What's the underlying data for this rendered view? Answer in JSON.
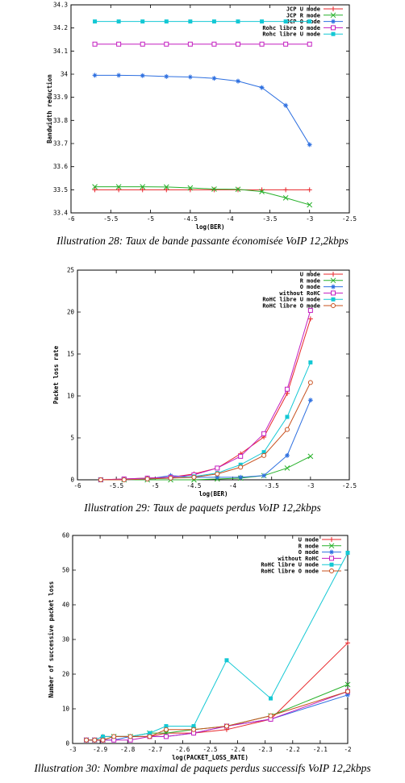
{
  "chart_data": [
    {
      "type": "line",
      "caption": "Illustration  28: Taux de bande passante économisée VoIP 12,2kbps",
      "xlabel": "log(BER)",
      "ylabel": "Bandwidth reduction",
      "xlim": [
        -6,
        -2.5
      ],
      "ylim": [
        33.4,
        34.3
      ],
      "xticks": [
        -6,
        -5.5,
        -5,
        -4.5,
        -4,
        -3.5,
        -3,
        -2.5
      ],
      "xtick_labels": [
        "-6",
        "-5.5",
        "-5",
        "-4.5",
        "-4",
        "-3.5",
        "-3",
        "-2.5"
      ],
      "yticks": [
        33.4,
        33.5,
        33.6,
        33.7,
        33.8,
        33.9,
        34,
        34.1,
        34.2,
        34.3
      ],
      "ytick_labels": [
        "33.4",
        "33.5",
        "33.6",
        "33.7",
        "33.8",
        "33.9",
        "34",
        "34.1",
        "34.2",
        "34.3"
      ],
      "legend_position": "top-right",
      "grid": false,
      "x": [
        -5.7,
        -5.4,
        -5.1,
        -4.8,
        -4.5,
        -4.2,
        -3.9,
        -3.6,
        -3.3,
        -3.0
      ],
      "series": [
        {
          "name": "JCP U mode",
          "color": "#e8262a",
          "marker": "plus",
          "values": [
            33.5,
            33.5,
            33.5,
            33.5,
            33.5,
            33.5,
            33.5,
            33.5,
            33.5,
            33.5
          ]
        },
        {
          "name": "JCP R mode",
          "color": "#27b12a",
          "marker": "cross",
          "values": [
            33.513,
            33.513,
            33.513,
            33.512,
            33.508,
            33.503,
            33.502,
            33.492,
            33.465,
            33.435
          ]
        },
        {
          "name": "JCP O mode",
          "color": "#2d6fe0",
          "marker": "star",
          "values": [
            33.995,
            33.995,
            33.994,
            33.99,
            33.988,
            33.982,
            33.97,
            33.942,
            33.865,
            33.695
          ]
        },
        {
          "name": "Rohc libre O mode",
          "color": "#c31ec0",
          "marker": "square",
          "values": [
            34.13,
            34.13,
            34.13,
            34.13,
            34.13,
            34.13,
            34.13,
            34.13,
            34.13,
            34.13
          ]
        },
        {
          "name": "Rohc libre U mode",
          "color": "#14c8d4",
          "marker": "fsquare",
          "values": [
            34.228,
            34.228,
            34.228,
            34.228,
            34.228,
            34.228,
            34.228,
            34.228,
            34.228,
            34.228
          ]
        }
      ]
    },
    {
      "type": "line",
      "caption": "Illustration  29: Taux de paquets perdus VoIP 12,2kbps",
      "xlabel": "log(BER)",
      "ylabel": "Packet loss rate",
      "xlim": [
        -6,
        -2.5
      ],
      "ylim": [
        0,
        25
      ],
      "xticks": [
        -6,
        -5.5,
        -5,
        -4.5,
        -4,
        -3.5,
        -3,
        -2.5
      ],
      "xtick_labels": [
        "-6",
        "-5.5",
        "-5",
        "-4.5",
        "-4",
        "-3.5",
        "-3",
        "-2.5"
      ],
      "yticks": [
        0,
        5,
        10,
        15,
        20,
        25
      ],
      "ytick_labels": [
        "0",
        "5",
        "10",
        "15",
        "20",
        "25"
      ],
      "legend_position": "top-right",
      "grid": false,
      "x": [
        -5.7,
        -5.4,
        -5.1,
        -4.8,
        -4.5,
        -4.2,
        -3.9,
        -3.6,
        -3.3,
        -3.0
      ],
      "series": [
        {
          "name": "U mode",
          "color": "#e8262a",
          "marker": "plus",
          "values": [
            0,
            0.1,
            0.2,
            0.3,
            0.7,
            1.4,
            3.1,
            5.1,
            10.3,
            19.2
          ]
        },
        {
          "name": "R mode",
          "color": "#27b12a",
          "marker": "cross",
          "values": [
            0,
            0,
            0,
            0,
            0,
            0.1,
            0.2,
            0.5,
            1.4,
            2.8
          ]
        },
        {
          "name": "O mode",
          "color": "#2d6fe0",
          "marker": "star",
          "values": [
            0,
            0,
            0.1,
            0.5,
            0.3,
            0.3,
            0.3,
            0.5,
            2.9,
            9.5
          ]
        },
        {
          "name": "without RoHC",
          "color": "#c31ec0",
          "marker": "square",
          "values": [
            0,
            0.1,
            0.2,
            0.3,
            0.6,
            1.4,
            2.8,
            5.5,
            10.8,
            20.2
          ]
        },
        {
          "name": "RoHC libre U mode",
          "color": "#14c8d4",
          "marker": "fsquare",
          "values": [
            0,
            0,
            0.1,
            0.2,
            0.4,
            0.8,
            1.8,
            3.3,
            7.5,
            14.0
          ]
        },
        {
          "name": "RoHC libre O mode",
          "color": "#c8501e",
          "marker": "circle",
          "values": [
            0,
            0,
            0.1,
            0.2,
            0.3,
            0.7,
            1.5,
            2.9,
            6.0,
            11.6
          ]
        }
      ]
    },
    {
      "type": "line",
      "caption": "Illustration  30: Nombre maximal de paquets perdus successifs VoIP 12,2kbps",
      "xlabel": "log(PACKET_LOSS_RATE)",
      "ylabel": "Number of successive packet loss",
      "xlim": [
        -3,
        -2
      ],
      "ylim": [
        0,
        60
      ],
      "xticks": [
        -3,
        -2.9,
        -2.8,
        -2.7,
        -2.6,
        -2.5,
        -2.4,
        -2.3,
        -2.2,
        -2.1,
        -2
      ],
      "xtick_labels": [
        "-3",
        "-2.9",
        "-2.8",
        "-2.7",
        "-2.6",
        "-2.5",
        "-2.4",
        "-2.3",
        "-2.2",
        "-2.1",
        "-2"
      ],
      "yticks": [
        0,
        10,
        20,
        30,
        40,
        50,
        60
      ],
      "ytick_labels": [
        "0",
        "10",
        "20",
        "30",
        "40",
        "50",
        "60"
      ],
      "legend_position": "top-right",
      "grid": false,
      "x": [
        -2.95,
        -2.92,
        -2.89,
        -2.85,
        -2.79,
        -2.72,
        -2.66,
        -2.56,
        -2.44,
        -2.28,
        -2.0
      ],
      "series": [
        {
          "name": "U mode",
          "color": "#e8262a",
          "marker": "plus",
          "values": [
            1,
            1,
            2,
            2,
            2,
            2,
            3,
            3,
            4,
            7,
            29
          ]
        },
        {
          "name": "R mode",
          "color": "#27b12a",
          "marker": "cross",
          "values": [
            1,
            1,
            1,
            2,
            2,
            3,
            3,
            4,
            5,
            8,
            17
          ]
        },
        {
          "name": "O mode",
          "color": "#2d6fe0",
          "marker": "star",
          "values": [
            1,
            1,
            1,
            1,
            2,
            2,
            2,
            3,
            5,
            7,
            14
          ]
        },
        {
          "name": "without RoHC",
          "color": "#c31ec0",
          "marker": "square",
          "values": [
            1,
            1,
            1,
            1,
            1,
            2,
            2,
            3,
            5,
            7,
            15
          ]
        },
        {
          "name": "RoHC libre U mode",
          "color": "#14c8d4",
          "marker": "fsquare",
          "values": [
            1,
            1,
            2,
            2,
            2,
            3,
            5,
            5,
            24,
            13,
            55
          ]
        },
        {
          "name": "RoHC libre O mode",
          "color": "#c8501e",
          "marker": "circle",
          "values": [
            1,
            1,
            1,
            2,
            2,
            2,
            4,
            4,
            5,
            8,
            15
          ]
        }
      ]
    }
  ]
}
